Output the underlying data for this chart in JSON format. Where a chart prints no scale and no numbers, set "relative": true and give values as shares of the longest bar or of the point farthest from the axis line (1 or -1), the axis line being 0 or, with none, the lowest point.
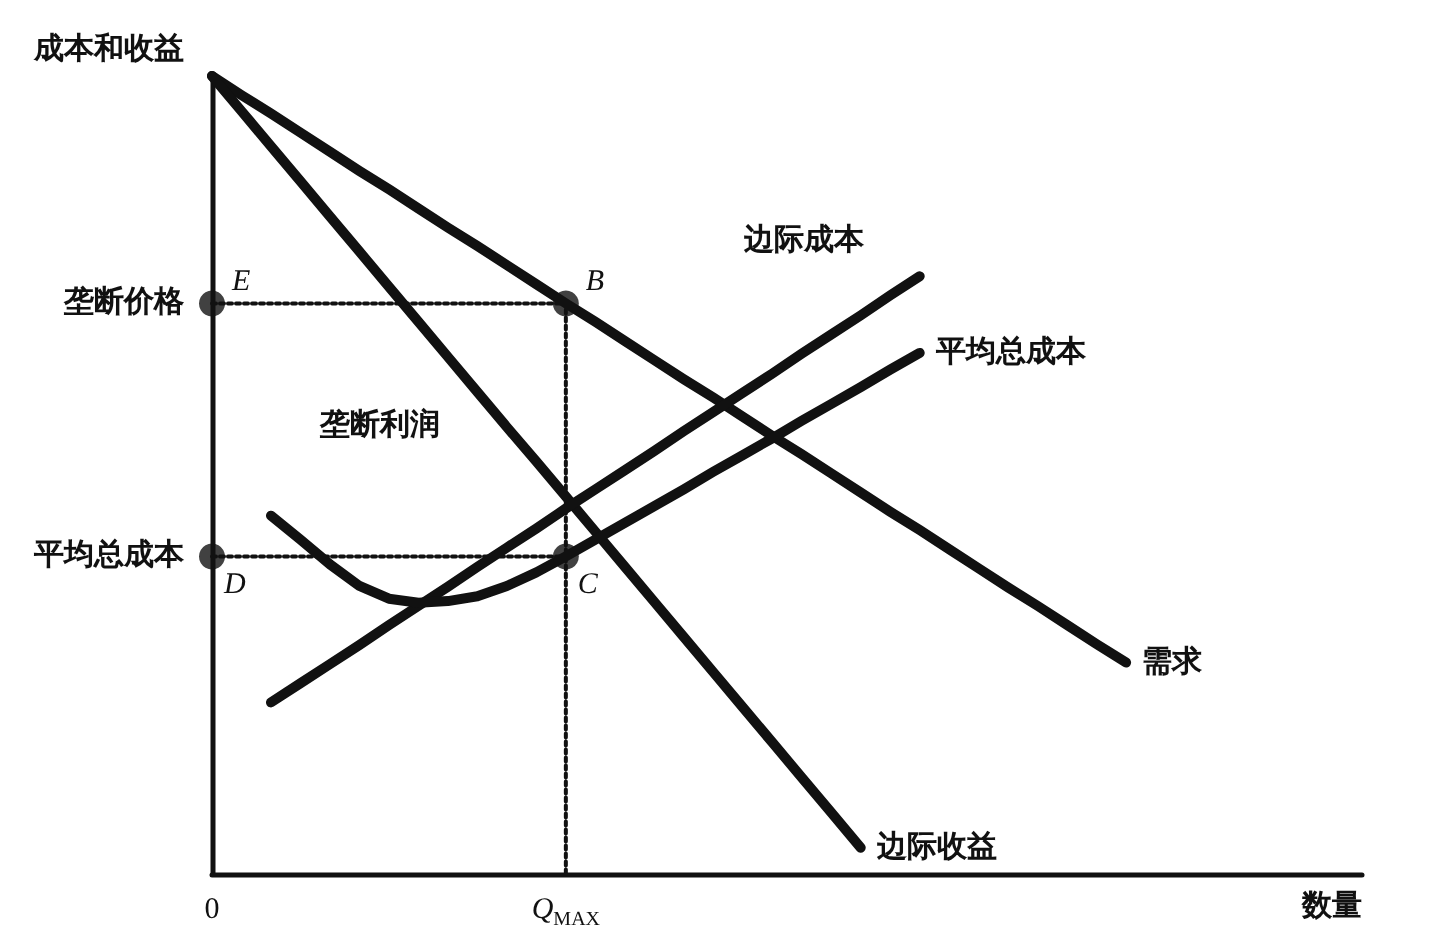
{
  "chart_data": {
    "type": "line",
    "relative": true,
    "xlabel": "数量",
    "ylabel": "成本和收益",
    "categories": [
      "0",
      null,
      null,
      null,
      null,
      null,
      null,
      null,
      null,
      null,
      null,
      null,
      "Q$_{MAX}$",
      null,
      null,
      null,
      null,
      null,
      null,
      null,
      null,
      null,
      null,
      null,
      null,
      null,
      null,
      null,
      null,
      null,
      null,
      null,
      null,
      null,
      null,
      null,
      null,
      null,
      null,
      null
    ],
    "marker": "none",
    "line_style": "solid",
    "series": [
      {
        "name": "需求",
        "color": "#111111",
        "values": [
          1,
          0.976,
          0.953,
          0.929,
          0.905,
          0.881,
          0.858,
          0.834,
          0.81,
          0.787,
          0.763,
          0.739,
          0.715,
          0.692,
          0.668,
          0.644,
          0.62,
          0.597,
          0.573,
          0.549,
          0.526,
          0.502,
          0.478,
          0.454,
          0.431,
          0.407,
          0.383,
          0.359,
          0.336,
          0.312,
          0.288,
          0.265,
          null,
          null,
          null,
          null,
          null,
          null,
          null,
          null
        ]
      },
      {
        "name": "边际收益",
        "color": "#111111",
        "values": [
          1,
          0.956,
          0.912,
          0.868,
          0.824,
          0.78,
          0.736,
          0.692,
          0.648,
          0.604,
          0.56,
          0.517,
          0.473,
          0.429,
          0.385,
          0.341,
          0.297,
          0.253,
          0.209,
          0.165,
          0.121,
          0.077,
          0.033,
          null,
          null,
          null,
          null,
          null,
          null,
          null,
          null,
          null,
          null,
          null,
          null,
          null,
          null,
          null,
          null,
          null
        ]
      },
      {
        "name": "边际成本",
        "color": "#111111",
        "values": [
          null,
          null,
          0.215,
          0.239,
          0.263,
          0.287,
          0.312,
          0.336,
          0.36,
          0.385,
          0.409,
          0.433,
          0.458,
          0.482,
          0.506,
          0.53,
          0.555,
          0.579,
          0.603,
          0.627,
          0.652,
          0.676,
          0.7,
          0.725,
          0.749,
          null,
          null,
          null,
          null,
          null,
          null,
          null,
          null,
          null,
          null,
          null,
          null,
          null,
          null,
          null
        ]
      },
      {
        "name": "平均总成本",
        "color": "#111111",
        "values": [
          null,
          null,
          0.449,
          0.419,
          0.388,
          0.361,
          0.345,
          0.34,
          0.342,
          0.348,
          0.361,
          0.378,
          0.398,
          0.419,
          0.44,
          0.461,
          0.482,
          0.504,
          0.525,
          0.546,
          0.568,
          0.589,
          0.61,
          0.632,
          0.653,
          null,
          null,
          null,
          null,
          null,
          null,
          null,
          null,
          null,
          null,
          null,
          null,
          null,
          null,
          null
        ]
      },
      {
        "color": "#111111",
        "line_style": "dotted",
        "x": [
          "0",
          "Q$_{MAX}$",
          "Q$_{MAX}$"
        ],
        "values": [
          0.715,
          0.715,
          0
        ]
      },
      {
        "color": "#111111",
        "line_style": "dotted",
        "x": [
          "0",
          "Q$_{MAX}$"
        ],
        "values": [
          0.398,
          0.398
        ]
      },
      {
        "type": "scatter",
        "color": "#111111",
        "marker": "circle",
        "x": [
          "0",
          "Q$_{MAX}$",
          "0",
          "Q$_{MAX}$"
        ],
        "values": [
          0.715,
          0.715,
          0.398,
          0.398
        ]
      }
    ],
    "annotations": [
      {
        "text": "垄断价格",
        "x": "0",
        "y": 0.715
      },
      {
        "text": "平均总成本",
        "x": "0",
        "y": 0.398
      },
      {
        "text": "E",
        "x": "0",
        "y": 0.715
      },
      {
        "text": "B",
        "x": "Q$_{MAX}$",
        "y": 0.715
      },
      {
        "text": "D",
        "x": "0",
        "y": 0.398
      },
      {
        "text": "C",
        "x": "Q$_{MAX}$",
        "y": 0.398
      },
      "垄断利润"
    ]
  }
}
